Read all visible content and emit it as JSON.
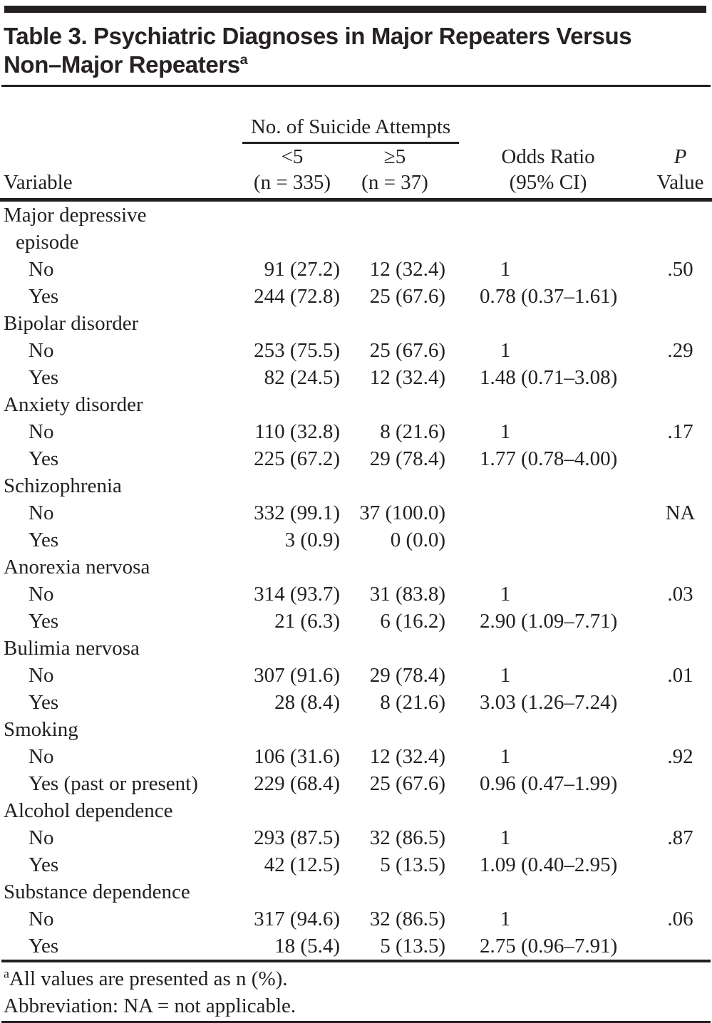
{
  "title": {
    "line1": "Table 3. Psychiatric Diagnoses in Major Repeaters Versus",
    "line2": "Non–Major Repeaters",
    "superscript": "a"
  },
  "header": {
    "variable": "Variable",
    "group": "No. of Suicide Attempts",
    "col1": {
      "line1": "<5",
      "line2": "(n = 335)"
    },
    "col2": {
      "line1": "≥5",
      "line2": "(n = 37)"
    },
    "odds_ratio": {
      "line1": "Odds Ratio",
      "line2": "(95% CI)"
    },
    "p_value": {
      "line1": "P",
      "line2": "Value"
    }
  },
  "table": {
    "rows": [
      {
        "label": "Major depressive",
        "indent": "group",
        "lt5": "",
        "ge5": "",
        "odds_ratio": "",
        "p": ""
      },
      {
        "label": "episode",
        "indent": "cont",
        "lt5": "",
        "ge5": "",
        "odds_ratio": "",
        "p": ""
      },
      {
        "label": "No",
        "indent": "sub",
        "lt5": "91 (27.2)",
        "ge5": "12 (32.4)",
        "odds_ratio": "1",
        "p": ".50"
      },
      {
        "label": "Yes",
        "indent": "sub",
        "lt5": "244 (72.8)",
        "ge5": "25 (67.6)",
        "odds_ratio": "0.78 (0.37–1.61)",
        "p": ""
      },
      {
        "label": "Bipolar disorder",
        "indent": "group",
        "lt5": "",
        "ge5": "",
        "odds_ratio": "",
        "p": ""
      },
      {
        "label": "No",
        "indent": "sub",
        "lt5": "253 (75.5)",
        "ge5": "25 (67.6)",
        "odds_ratio": "1",
        "p": ".29"
      },
      {
        "label": "Yes",
        "indent": "sub",
        "lt5": "82 (24.5)",
        "ge5": "12 (32.4)",
        "odds_ratio": "1.48 (0.71–3.08)",
        "p": ""
      },
      {
        "label": "Anxiety disorder",
        "indent": "group",
        "lt5": "",
        "ge5": "",
        "odds_ratio": "",
        "p": ""
      },
      {
        "label": "No",
        "indent": "sub",
        "lt5": "110 (32.8)",
        "ge5": "8 (21.6)",
        "odds_ratio": "1",
        "p": ".17"
      },
      {
        "label": "Yes",
        "indent": "sub",
        "lt5": "225 (67.2)",
        "ge5": "29 (78.4)",
        "odds_ratio": "1.77 (0.78–4.00)",
        "p": ""
      },
      {
        "label": "Schizophrenia",
        "indent": "group",
        "lt5": "",
        "ge5": "",
        "odds_ratio": "",
        "p": ""
      },
      {
        "label": "No",
        "indent": "sub",
        "lt5": "332 (99.1)",
        "ge5": "37 (100.0)",
        "odds_ratio": "",
        "p": "NA"
      },
      {
        "label": "Yes",
        "indent": "sub",
        "lt5": "3 (0.9)",
        "ge5": "0 (0.0)",
        "odds_ratio": "",
        "p": ""
      },
      {
        "label": "Anorexia nervosa",
        "indent": "group",
        "lt5": "",
        "ge5": "",
        "odds_ratio": "",
        "p": ""
      },
      {
        "label": "No",
        "indent": "sub",
        "lt5": "314 (93.7)",
        "ge5": "31 (83.8)",
        "odds_ratio": "1",
        "p": ".03"
      },
      {
        "label": "Yes",
        "indent": "sub",
        "lt5": "21 (6.3)",
        "ge5": "6 (16.2)",
        "odds_ratio": "2.90 (1.09–7.71)",
        "p": ""
      },
      {
        "label": "Bulimia nervosa",
        "indent": "group",
        "lt5": "",
        "ge5": "",
        "odds_ratio": "",
        "p": ""
      },
      {
        "label": "No",
        "indent": "sub",
        "lt5": "307 (91.6)",
        "ge5": "29 (78.4)",
        "odds_ratio": "1",
        "p": ".01"
      },
      {
        "label": "Yes",
        "indent": "sub",
        "lt5": "28 (8.4)",
        "ge5": "8 (21.6)",
        "odds_ratio": "3.03 (1.26–7.24)",
        "p": ""
      },
      {
        "label": "Smoking",
        "indent": "group",
        "lt5": "",
        "ge5": "",
        "odds_ratio": "",
        "p": ""
      },
      {
        "label": "No",
        "indent": "sub",
        "lt5": "106 (31.6)",
        "ge5": "12 (32.4)",
        "odds_ratio": "1",
        "p": ".92"
      },
      {
        "label": "Yes (past or present)",
        "indent": "sub",
        "lt5": "229 (68.4)",
        "ge5": "25 (67.6)",
        "odds_ratio": "0.96 (0.47–1.99)",
        "p": ""
      },
      {
        "label": "Alcohol dependence",
        "indent": "group",
        "lt5": "",
        "ge5": "",
        "odds_ratio": "",
        "p": ""
      },
      {
        "label": "No",
        "indent": "sub",
        "lt5": "293 (87.5)",
        "ge5": "32 (86.5)",
        "odds_ratio": "1",
        "p": ".87"
      },
      {
        "label": "Yes",
        "indent": "sub",
        "lt5": "42 (12.5)",
        "ge5": "5 (13.5)",
        "odds_ratio": "1.09 (0.40–2.95)",
        "p": ""
      },
      {
        "label": "Substance dependence",
        "indent": "group",
        "lt5": "",
        "ge5": "",
        "odds_ratio": "",
        "p": ""
      },
      {
        "label": "No",
        "indent": "sub",
        "lt5": "317 (94.6)",
        "ge5": "32 (86.5)",
        "odds_ratio": "1",
        "p": ".06"
      },
      {
        "label": "Yes",
        "indent": "sub",
        "lt5": "18 (5.4)",
        "ge5": "5 (13.5)",
        "odds_ratio": "2.75 (0.96–7.91)",
        "p": ""
      }
    ]
  },
  "footnotes": {
    "superscript": "a",
    "line1": "All values are presented as n (%).",
    "line2": "Abbreviation: NA = not applicable."
  },
  "colors": {
    "text": "#231f20",
    "rule": "#231f20",
    "background": "#ffffff"
  }
}
